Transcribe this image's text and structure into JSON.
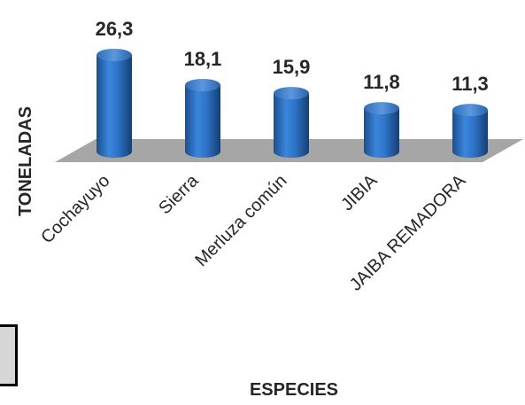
{
  "chart_data": {
    "type": "bar",
    "categories": [
      "Cochayuyo",
      "Sierra",
      "Merluza común",
      "JIBIA",
      "JAIBA REMADORA"
    ],
    "values": [
      26.3,
      18.1,
      15.9,
      11.8,
      11.3
    ],
    "value_labels": [
      "26,3",
      "18,1",
      "15,9",
      "11,8",
      "11,3"
    ],
    "title": "",
    "xlabel": "ESPECIES",
    "ylabel": "TONELADAS",
    "ylim": [
      0,
      26.3
    ],
    "grid": false,
    "legend": "none",
    "colors": {
      "bar": "#2e74c9",
      "bar_dark": "#1b4f8f",
      "bar_light": "#6fa6e6",
      "floor": "#a6a6a6",
      "text": "#262626"
    }
  }
}
